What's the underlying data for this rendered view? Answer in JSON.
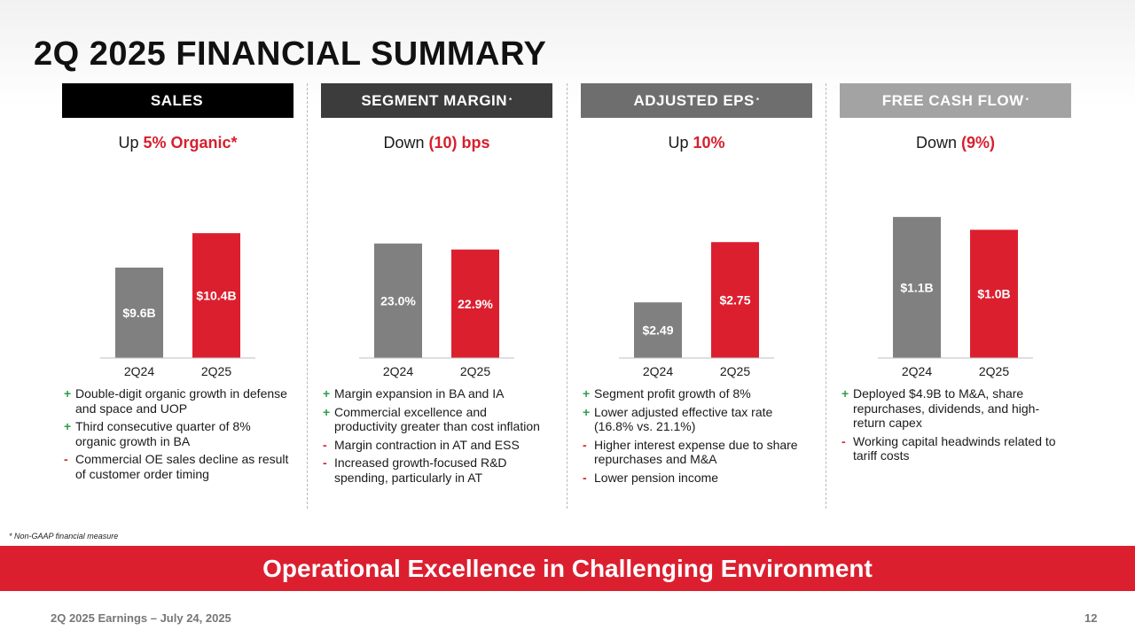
{
  "title": "2Q 2025 FINANCIAL SUMMARY",
  "colors": {
    "prior": "#808080",
    "current": "#dc1f2f",
    "accent": "#d7202e",
    "plus": "#2e9e4f"
  },
  "columns": [
    {
      "header": "SALES",
      "header_mark": "",
      "header_bg": "#000000",
      "subtitle_prefix": "Up ",
      "subtitle_highlight": "5% Organic*",
      "bullets": [
        {
          "sign": "+",
          "text": "Double-digit organic growth in defense and space and UOP"
        },
        {
          "sign": "+",
          "text": "Third consecutive quarter of 8% organic growth in BA"
        },
        {
          "sign": "-",
          "text": "Commercial OE sales decline as result of customer order timing"
        }
      ]
    },
    {
      "header": "SEGMENT MARGIN",
      "header_mark": "*",
      "header_bg": "#3c3c3c",
      "subtitle_prefix": "Down ",
      "subtitle_highlight": "(10) bps",
      "bullets": [
        {
          "sign": "+",
          "text": "Margin expansion in BA and IA"
        },
        {
          "sign": "+",
          "text": "Commercial excellence and productivity greater than cost inflation"
        },
        {
          "sign": "-",
          "text": "Margin contraction in AT and ESS"
        },
        {
          "sign": "-",
          "text": "Increased growth-focused R&D spending, particularly in AT"
        }
      ]
    },
    {
      "header": "ADJUSTED EPS",
      "header_mark": "*",
      "header_bg": "#6e6e6e",
      "subtitle_prefix": "Up ",
      "subtitle_highlight": "10%",
      "bullets": [
        {
          "sign": "+",
          "text": "Segment profit growth of 8%"
        },
        {
          "sign": "+",
          "text": "Lower adjusted effective tax rate (16.8% vs. 21.1%)"
        },
        {
          "sign": "-",
          "text": "Higher interest expense due to share repurchases and M&A"
        },
        {
          "sign": "-",
          "text": "Lower pension income"
        }
      ]
    },
    {
      "header": "FREE CASH FLOW",
      "header_mark": "*",
      "header_bg": "#a3a3a3",
      "subtitle_prefix": "Down ",
      "subtitle_highlight": "(9%)",
      "bullets": [
        {
          "sign": "+",
          "text": "Deployed $4.9B to M&A, share repurchases, dividends, and high-return capex"
        },
        {
          "sign": "-",
          "text": "Working capital headwinds related to tariff costs"
        }
      ]
    }
  ],
  "chart_data": [
    {
      "type": "bar",
      "categories": [
        "2Q24",
        "2Q25"
      ],
      "values": [
        9.6,
        10.4
      ],
      "labels": [
        "$9.6B",
        "$10.4B"
      ],
      "ylim": [
        7.5,
        11.0
      ]
    },
    {
      "type": "bar",
      "categories": [
        "2Q24",
        "2Q25"
      ],
      "values": [
        23.0,
        22.9
      ],
      "labels": [
        "23.0%",
        "22.9%"
      ],
      "ylim": [
        21.1,
        23.6
      ]
    },
    {
      "type": "bar",
      "categories": [
        "2Q24",
        "2Q25"
      ],
      "values": [
        2.49,
        2.75
      ],
      "labels": [
        "$2.49",
        "$2.75"
      ],
      "ylim": [
        2.25,
        2.9
      ]
    },
    {
      "type": "bar",
      "categories": [
        "2Q24",
        "2Q25"
      ],
      "values": [
        1.1,
        1.0
      ],
      "labels": [
        "$1.1B",
        "$1.0B"
      ],
      "ylim": [
        0.0,
        1.175
      ]
    }
  ],
  "footnote": "* Non-GAAP financial measure",
  "banner": "Operational Excellence in Challenging Environment",
  "footer": {
    "left": "2Q 2025 Earnings – July 24, 2025",
    "page": "12"
  }
}
